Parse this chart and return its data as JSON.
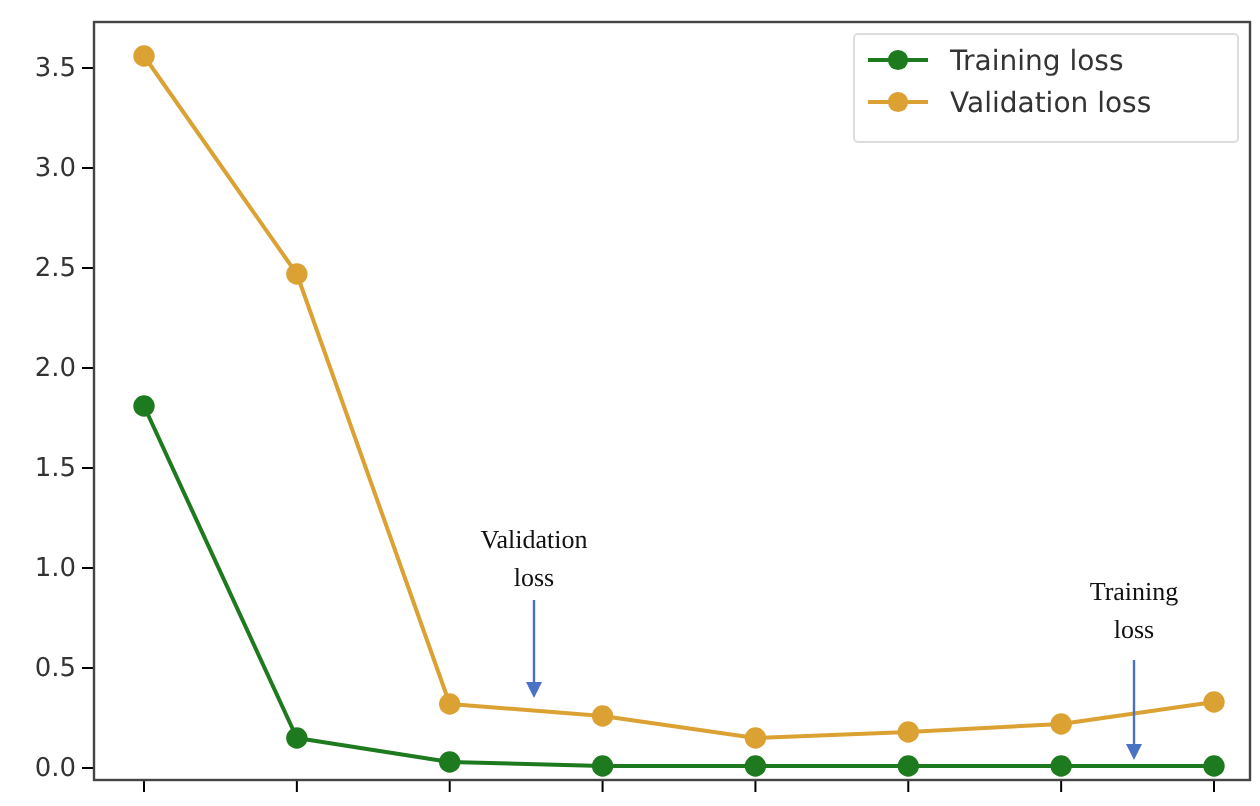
{
  "chart_data": {
    "type": "line",
    "categories": [
      null,
      null,
      null,
      null,
      null,
      null,
      null,
      null
    ],
    "series": [
      {
        "name": "Training loss",
        "color": "#1e7a1e",
        "values": [
          1.81,
          0.15,
          0.03,
          0.01,
          0.01,
          0.01,
          0.01,
          0.01
        ]
      },
      {
        "name": "Validation loss",
        "color": "#dba132",
        "values": [
          3.56,
          2.47,
          0.32,
          0.26,
          0.15,
          0.18,
          0.22,
          0.33
        ]
      }
    ],
    "ylim": [
      -0.06,
      3.73
    ],
    "yticks": [
      {
        "value": 0,
        "label": "0.0"
      },
      {
        "value": 0.5,
        "label": "0.5"
      },
      {
        "value": 1,
        "label": "1.0"
      },
      {
        "value": 1.5,
        "label": "1.5"
      },
      {
        "value": 2,
        "label": "2.0"
      },
      {
        "value": 2.5,
        "label": "2.5"
      },
      {
        "value": 3,
        "label": "3.0"
      },
      {
        "value": 3.5,
        "label": "3.5"
      }
    ],
    "marker": "circle",
    "line_style": "solid",
    "legend": "top right",
    "grid": false,
    "annotations": [
      "Validation\nloss",
      "Training\nloss"
    ]
  }
}
